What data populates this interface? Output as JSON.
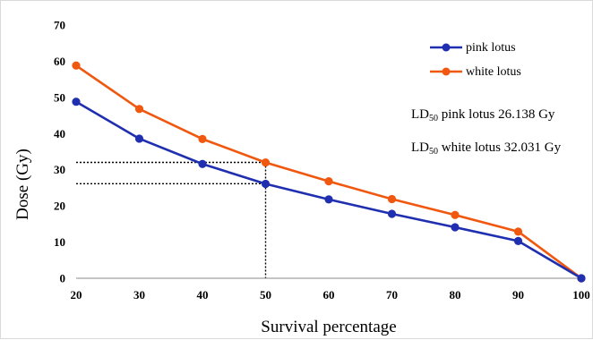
{
  "chart_data": {
    "type": "line",
    "xlabel": "Survival percentage",
    "ylabel": "Dose (Gy)",
    "x": [
      20,
      30,
      40,
      50,
      60,
      70,
      80,
      90,
      100
    ],
    "xlim": [
      20,
      100
    ],
    "ylim": [
      0,
      70
    ],
    "x_ticks": [
      20,
      30,
      40,
      50,
      60,
      70,
      80,
      90,
      100
    ],
    "y_ticks": [
      0,
      10,
      20,
      30,
      40,
      50,
      60,
      70
    ],
    "grid": false,
    "legend_position": "top-right",
    "series": [
      {
        "name": "pink lotus",
        "color": "#1f2fb0",
        "values": [
          48.8,
          38.6,
          31.6,
          26.1,
          21.8,
          17.8,
          14.1,
          10.3,
          0
        ]
      },
      {
        "name": "white lotus",
        "color": "#f0570f",
        "values": [
          58.8,
          46.8,
          38.5,
          32.0,
          26.8,
          21.9,
          17.5,
          12.9,
          0
        ]
      }
    ],
    "reference_lines": [
      {
        "x": 50,
        "y": 32.031
      },
      {
        "x": 50,
        "y": 26.138
      }
    ],
    "annotations": [
      {
        "prefix": "LD",
        "sub": "50",
        "text": " pink lotus 26.138 Gy"
      },
      {
        "prefix": "LD",
        "sub": "50",
        "text": " white lotus 32.031 Gy"
      }
    ]
  }
}
